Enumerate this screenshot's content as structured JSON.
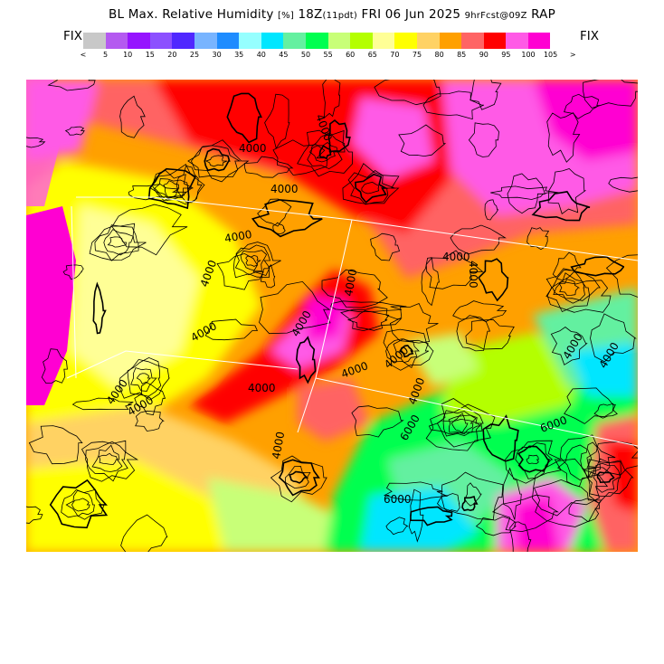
{
  "title": {
    "main": "BL Max. Relative Humidity",
    "units": "[%]",
    "valid": "18Z",
    "fhr": "(11pdt)",
    "date": "FRI 06 Jun 2025",
    "init": "9hrFcst@09Z",
    "model": "RAP"
  },
  "fix_left": "FIX",
  "fix_right": "FIX",
  "colorbar": {
    "colors": [
      "#c8c8c8",
      "#b45af0",
      "#9614ff",
      "#8c50ff",
      "#5028ff",
      "#78b4ff",
      "#1e8cff",
      "#96ffff",
      "#00e6ff",
      "#64f0a0",
      "#00ff50",
      "#c8ff78",
      "#b4ff00",
      "#ffff96",
      "#ffff00",
      "#ffd264",
      "#ffa000",
      "#ff6464",
      "#ff0000",
      "#ff5ae6",
      "#ff00d2"
    ],
    "labels": [
      "<",
      "5",
      "10",
      "15",
      "20",
      "25",
      "30",
      "35",
      "40",
      "45",
      "50",
      "55",
      "60",
      "65",
      "70",
      "75",
      "80",
      "85",
      "90",
      "95",
      "100",
      "105",
      ">"
    ]
  },
  "map": {
    "contour_labels": [
      "4000",
      "4000",
      "4000",
      "4000",
      "4000",
      "4000",
      "4000",
      "4000",
      "4000",
      "4000",
      "4000",
      "4000",
      "4000",
      "4000",
      "4000",
      "4000",
      "4000",
      "4000",
      "4000",
      "6000",
      "6000",
      "6000"
    ]
  }
}
